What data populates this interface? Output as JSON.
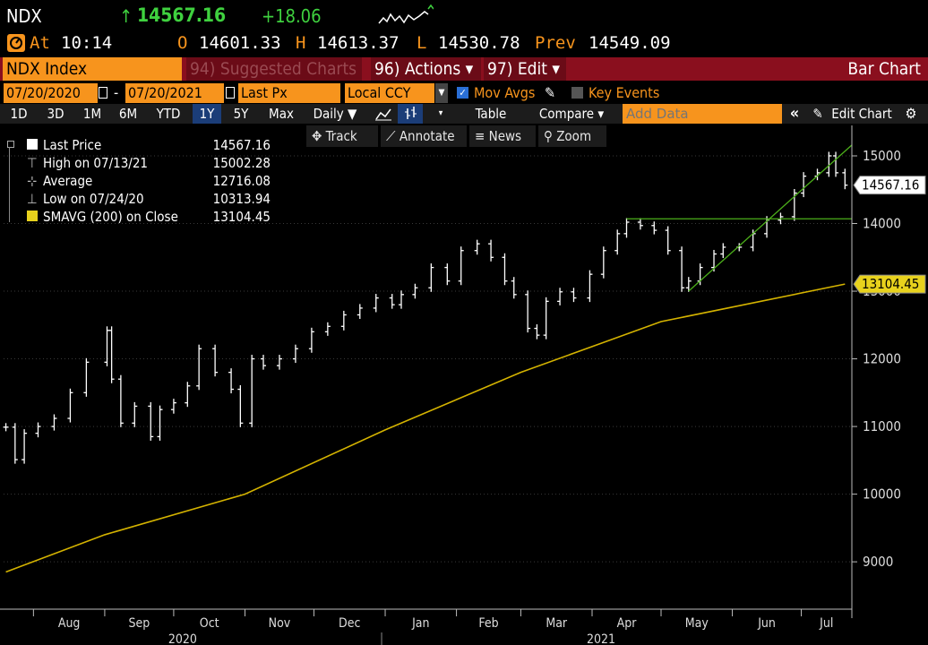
{
  "ticker": {
    "symbol": "NDX",
    "arrow": "↑",
    "last": "14567.16",
    "change": "+18.06"
  },
  "quote": {
    "at_label": "At",
    "time": "10:14",
    "open_label": "O",
    "open": "14601.33",
    "high_label": "H",
    "high": "14613.37",
    "low_label": "L",
    "low": "14530.78",
    "prev_label": "Prev",
    "prev": "14549.09"
  },
  "menubar": {
    "security": "NDX Index",
    "suggested": "94) Suggested Charts",
    "actions": "96) Actions ▾",
    "edit": "97) Edit ▾",
    "chart_type": "Bar Chart"
  },
  "settings": {
    "start_date": "07/20/2020",
    "dash": "-",
    "end_date": "07/20/2021",
    "field": "Last Px",
    "currency": "Local CCY",
    "mov_avgs": "Mov Avgs",
    "key_events": "Key Events"
  },
  "toolbar": {
    "periods": [
      "1D",
      "3D",
      "1M",
      "6M",
      "YTD",
      "1Y",
      "5Y",
      "Max"
    ],
    "selected_period": "1Y",
    "frequency": "Daily ▼",
    "table": "Table",
    "compare": "Compare ▾",
    "add_data_placeholder": "Add Data",
    "collapse": "«",
    "edit_chart": "Edit Chart"
  },
  "chart_tools": {
    "track": "Track",
    "annotate": "Annotate",
    "news": "News",
    "zoom": "Zoom"
  },
  "legend": [
    {
      "label": "Last Price",
      "value": "14567.16"
    },
    {
      "label": "High on 07/13/21",
      "value": "15002.28"
    },
    {
      "label": "Average",
      "value": "12716.08"
    },
    {
      "label": "Low on 07/24/20",
      "value": "10313.94"
    },
    {
      "label": "SMAVG (200)  on Close",
      "value": "13104.45"
    }
  ],
  "colors": {
    "orange": "#f7941d",
    "menu_red": "#8a0f1e",
    "green": "#3fd13f",
    "sma_yellow": "#d4b300",
    "trend_green": "#4caf1a",
    "selected_blue": "#1b3d78"
  },
  "chart_data": {
    "type": "bar",
    "title": "",
    "y_ticks": [
      "9000",
      "10000",
      "11000",
      "12000",
      "13000",
      "14000",
      "15000"
    ],
    "ylim": [
      8300,
      15450
    ],
    "x_months": [
      "Aug",
      "Sep",
      "Oct",
      "Nov",
      "Dec",
      "Jan",
      "Feb",
      "Mar",
      "Apr",
      "May",
      "Jun",
      "Jul"
    ],
    "x_years": [
      "2020",
      "2021"
    ],
    "price_tag": "14567.16",
    "sma_tag": "13104.45",
    "series": [
      {
        "name": "Last Price",
        "x": [
          "2020-07-20",
          "2020-07-24",
          "2020-07-28",
          "2020-08-03",
          "2020-08-10",
          "2020-08-17",
          "2020-08-24",
          "2020-09-02",
          "2020-09-04",
          "2020-09-08",
          "2020-09-14",
          "2020-09-21",
          "2020-09-25",
          "2020-10-01",
          "2020-10-07",
          "2020-10-12",
          "2020-10-19",
          "2020-10-26",
          "2020-10-30",
          "2020-11-04",
          "2020-11-09",
          "2020-11-16",
          "2020-11-23",
          "2020-11-30",
          "2020-12-07",
          "2020-12-14",
          "2020-12-21",
          "2020-12-28",
          "2021-01-04",
          "2021-01-08",
          "2021-01-14",
          "2021-01-21",
          "2021-01-28",
          "2021-02-03",
          "2021-02-10",
          "2021-02-16",
          "2021-02-22",
          "2021-02-26",
          "2021-03-04",
          "2021-03-08",
          "2021-03-12",
          "2021-03-18",
          "2021-03-24",
          "2021-03-31",
          "2021-04-06",
          "2021-04-12",
          "2021-04-16",
          "2021-04-22",
          "2021-04-28",
          "2021-05-04",
          "2021-05-10",
          "2021-05-13",
          "2021-05-18",
          "2021-05-24",
          "2021-05-28",
          "2021-06-04",
          "2021-06-10",
          "2021-06-16",
          "2021-06-22",
          "2021-06-28",
          "2021-07-02",
          "2021-07-08",
          "2021-07-13",
          "2021-07-16",
          "2021-07-20"
        ],
        "values": [
          10990,
          10510,
          10900,
          11000,
          11120,
          11500,
          11950,
          12420,
          11700,
          11050,
          11300,
          10850,
          11250,
          11350,
          11600,
          12150,
          11800,
          11550,
          11050,
          12000,
          11900,
          12000,
          12150,
          12400,
          12480,
          12650,
          12750,
          12900,
          12800,
          12950,
          13050,
          13350,
          13150,
          13600,
          13700,
          13500,
          13150,
          12950,
          12450,
          12350,
          12850,
          12990,
          12900,
          13250,
          13600,
          13850,
          14020,
          13970,
          13900,
          13600,
          13050,
          13150,
          13350,
          13550,
          13650,
          13650,
          13850,
          14050,
          14100,
          14450,
          14700,
          14750,
          15000,
          14750,
          14567.16
        ]
      },
      {
        "name": "SMAVG (200) on Close",
        "x": [
          "2020-07-20",
          "2020-09-01",
          "2020-11-01",
          "2021-01-01",
          "2021-03-01",
          "2021-05-01",
          "2021-07-20"
        ],
        "values": [
          8850,
          9400,
          10000,
          10950,
          11800,
          12550,
          13104.45
        ]
      }
    ]
  }
}
